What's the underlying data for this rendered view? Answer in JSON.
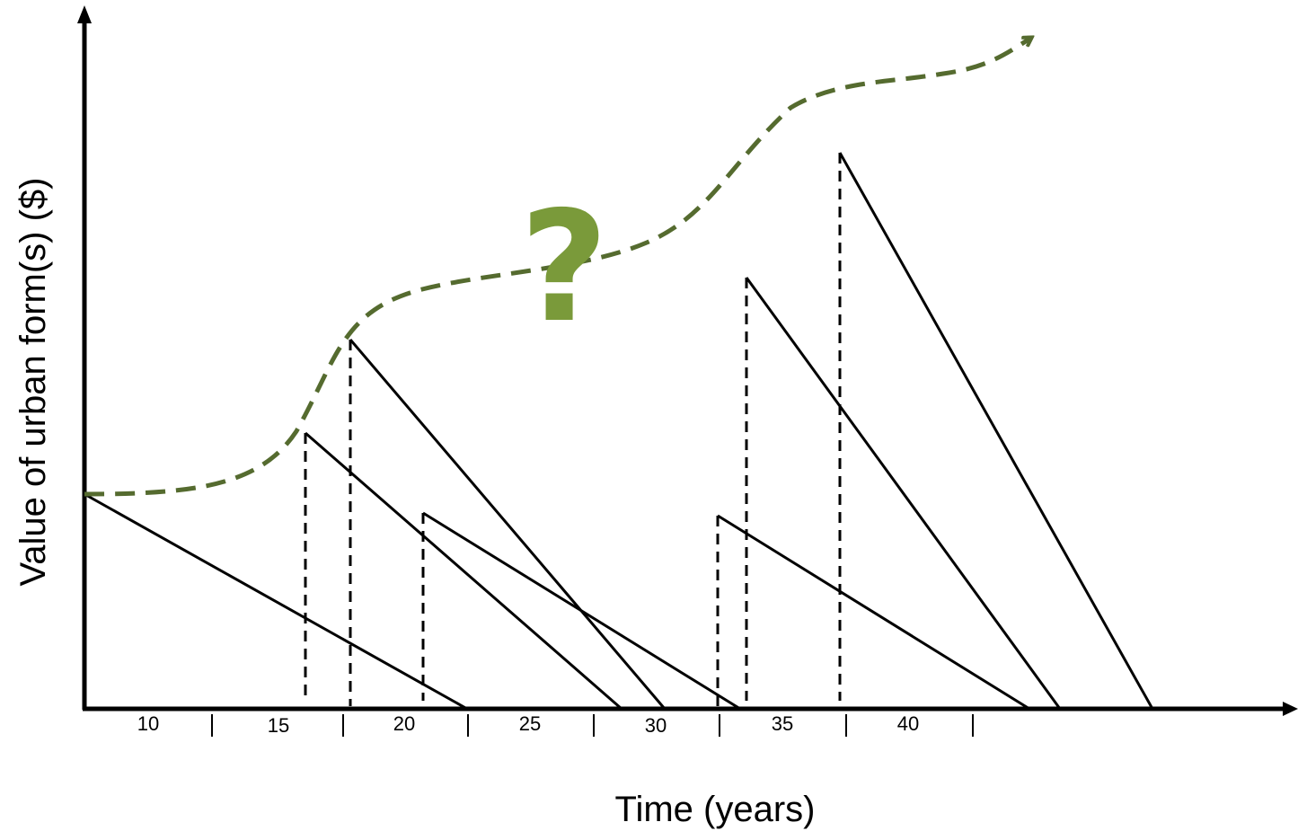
{
  "diagram": {
    "y_axis_title": "Value of urban form(s) ($)",
    "x_axis_title": "Time (years)",
    "question_mark": "?",
    "x_tick_labels": [
      "10",
      "15",
      "20",
      "25",
      "30",
      "35",
      "40"
    ],
    "colors": {
      "axes": "#000000",
      "lines": "#000000",
      "trend": "#556b2f",
      "question": "#7a9a3a"
    }
  }
}
